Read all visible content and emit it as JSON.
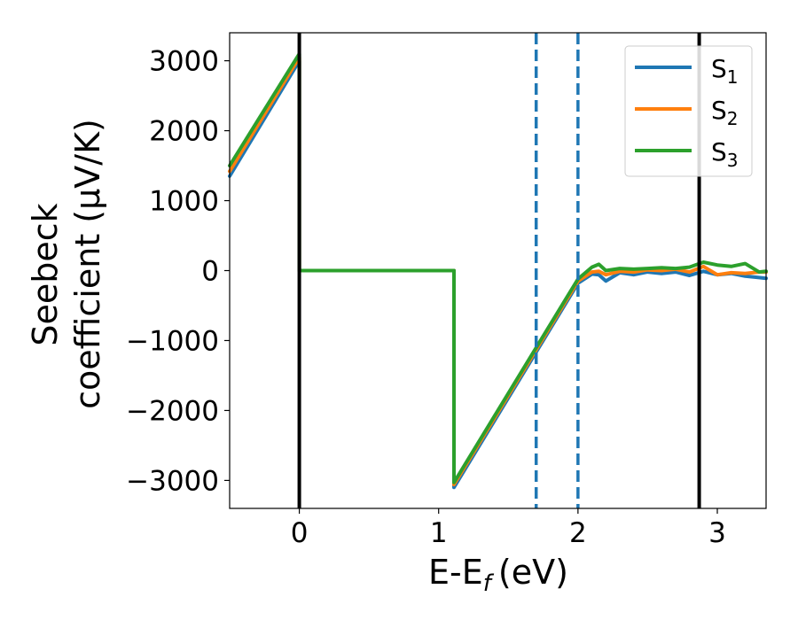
{
  "chart_data": {
    "type": "line",
    "xlabel": "E-E",
    "xlabel_sub": "f",
    "xlabel_unit": "(eV)",
    "ylabel_line1": "Seebeck",
    "ylabel_line2": "coefficient  (μV/K)",
    "xlim": [
      -0.5,
      3.35
    ],
    "ylim": [
      -3400,
      3400
    ],
    "x_ticks": [
      0,
      1,
      2,
      3
    ],
    "x_tick_labels": [
      "0",
      "1",
      "2",
      "3"
    ],
    "y_ticks": [
      3000,
      2000,
      1000,
      0,
      -1000,
      -2000,
      -3000
    ],
    "y_tick_labels": [
      "3000",
      "2000",
      "1000",
      "0",
      "−1000",
      "−2000",
      "−3000"
    ],
    "grid": false,
    "legend_position": "top-right",
    "series": [
      {
        "name": "S",
        "subscript": "1",
        "color": "#1f77b4",
        "x": [
          -0.5,
          0.0,
          0.0,
          1.11,
          1.11,
          2.0,
          2.1,
          2.15,
          2.2,
          2.3,
          2.4,
          2.5,
          2.6,
          2.7,
          2.8,
          2.9,
          3.0,
          3.1,
          3.2,
          3.3,
          3.35
        ],
        "y": [
          1350,
          3000,
          0,
          0,
          -3100,
          -180,
          -50,
          -60,
          -150,
          -30,
          -60,
          -20,
          -40,
          -20,
          -70,
          -10,
          -60,
          -40,
          -80,
          -100,
          -110
        ]
      },
      {
        "name": "S",
        "subscript": "2",
        "color": "#ff7f0e",
        "x": [
          -0.5,
          0.0,
          0.0,
          1.11,
          1.11,
          2.0,
          2.1,
          2.15,
          2.2,
          2.3,
          2.4,
          2.5,
          2.6,
          2.7,
          2.8,
          2.9,
          3.0,
          3.1,
          3.2,
          3.3,
          3.35
        ],
        "y": [
          1420,
          3050,
          0,
          0,
          -3060,
          -150,
          -20,
          -10,
          -60,
          -10,
          -20,
          10,
          0,
          20,
          -20,
          60,
          -60,
          -30,
          -40,
          -20,
          -20
        ]
      },
      {
        "name": "S",
        "subscript": "3",
        "color": "#2ca02c",
        "x": [
          -0.5,
          0.0,
          0.0,
          1.11,
          1.11,
          2.0,
          2.1,
          2.15,
          2.2,
          2.3,
          2.4,
          2.5,
          2.6,
          2.7,
          2.8,
          2.9,
          3.0,
          3.1,
          3.2,
          3.3,
          3.35
        ],
        "y": [
          1500,
          3100,
          0,
          0,
          -3030,
          -120,
          50,
          90,
          0,
          30,
          20,
          30,
          40,
          30,
          50,
          120,
          80,
          60,
          100,
          -20,
          -10
        ]
      }
    ],
    "vertical_lines": [
      {
        "x": 0.0,
        "style": "solid",
        "color": "#000000"
      },
      {
        "x": 2.87,
        "style": "solid",
        "color": "#000000"
      },
      {
        "x": 1.7,
        "style": "dashed",
        "color": "#1f77b4"
      },
      {
        "x": 2.0,
        "style": "dashed",
        "color": "#1f77b4"
      }
    ]
  }
}
